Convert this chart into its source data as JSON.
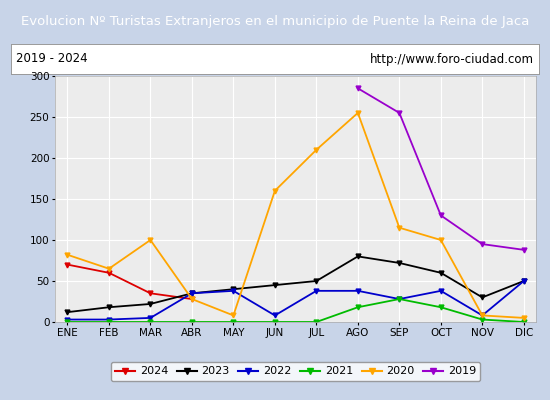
{
  "title": "Evolucion Nº Turistas Extranjeros en el municipio de Puente la Reina de Jaca",
  "subtitle_left": "2019 - 2024",
  "subtitle_right": "http://www.foro-ciudad.com",
  "title_bg_color": "#4472c4",
  "title_text_color": "#ffffff",
  "subtitle_bg_color": "#ffffff",
  "subtitle_text_color": "#000000",
  "plot_bg_color": "#ececec",
  "fig_bg_color": "#c8d4e8",
  "months": [
    "ENE",
    "FEB",
    "MAR",
    "ABR",
    "MAY",
    "JUN",
    "JUL",
    "AGO",
    "SEP",
    "OCT",
    "NOV",
    "DIC"
  ],
  "ylim": [
    0,
    300
  ],
  "yticks": [
    0,
    50,
    100,
    150,
    200,
    250,
    300
  ],
  "series": {
    "2024": {
      "color": "#dd0000",
      "data": [
        70,
        60,
        35,
        28,
        null,
        null,
        null,
        null,
        null,
        null,
        null,
        null
      ]
    },
    "2023": {
      "color": "#000000",
      "data": [
        12,
        18,
        22,
        35,
        40,
        45,
        50,
        80,
        72,
        60,
        30,
        50
      ]
    },
    "2022": {
      "color": "#0000cc",
      "data": [
        3,
        3,
        5,
        35,
        38,
        8,
        38,
        38,
        28,
        38,
        8,
        50
      ]
    },
    "2021": {
      "color": "#00bb00",
      "data": [
        0,
        0,
        0,
        0,
        0,
        0,
        0,
        18,
        28,
        18,
        3,
        0
      ]
    },
    "2020": {
      "color": "#ffa500",
      "data": [
        82,
        65,
        100,
        28,
        8,
        160,
        210,
        255,
        115,
        100,
        8,
        5
      ]
    },
    "2019": {
      "color": "#9900cc",
      "data": [
        null,
        null,
        null,
        null,
        null,
        null,
        null,
        285,
        255,
        130,
        95,
        88
      ]
    }
  },
  "legend_order": [
    "2024",
    "2023",
    "2022",
    "2021",
    "2020",
    "2019"
  ]
}
